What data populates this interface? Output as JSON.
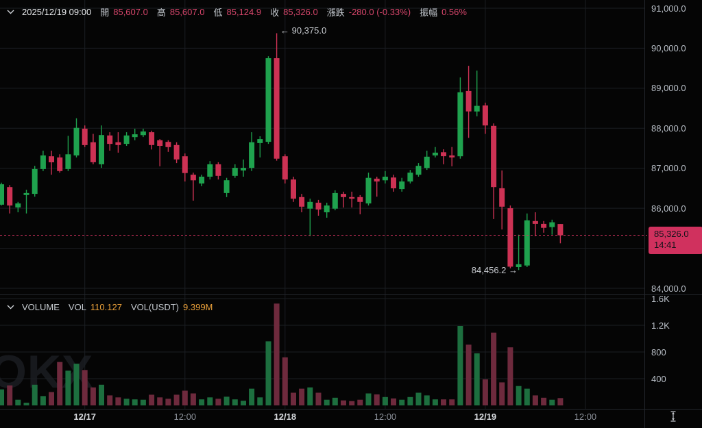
{
  "topbar": {
    "datetime": "2025/12/19 09:00",
    "fields": [
      {
        "label": "開",
        "value": "85,607.0"
      },
      {
        "label": "高",
        "value": "85,607.0"
      },
      {
        "label": "低",
        "value": "85,124.9"
      },
      {
        "label": "收",
        "value": "85,326.0"
      },
      {
        "label": "漲跌",
        "value": "-280.0 (-0.33%)"
      },
      {
        "label": "振幅",
        "value": "0.56%"
      }
    ]
  },
  "volume_header": {
    "title": "VOLUME",
    "fields": [
      {
        "label": "VOL",
        "value": "110.127"
      },
      {
        "label": "VOL(USDT)",
        "value": "9.399M"
      }
    ]
  },
  "annotations": {
    "high_marker": "← 90,375.0",
    "low_marker": "84,456.2 →"
  },
  "price_tag": {
    "price": "85,326.0",
    "time": "14:41"
  },
  "watermark": "OKX",
  "colors": {
    "up": "#1fa24e",
    "down": "#cd3254",
    "tag": "#d0315e",
    "vol_up": "#1d6f3f",
    "vol_down": "#6e2a3d",
    "grid": "#1b1e23",
    "accent_orange": "#eea33b"
  },
  "axes": {
    "price_ticks": [
      {
        "label": "91,000.0",
        "value": 91000
      },
      {
        "label": "90,000.0",
        "value": 90000
      },
      {
        "label": "89,000.0",
        "value": 89000
      },
      {
        "label": "88,000.0",
        "value": 88000
      },
      {
        "label": "87,000.0",
        "value": 87000
      },
      {
        "label": "86,000.0",
        "value": 86000
      },
      {
        "label": "84,000.0",
        "value": 84000
      }
    ],
    "volume_ticks": [
      {
        "label": "1.6K",
        "value": 1600
      },
      {
        "label": "1.2K",
        "value": 1200
      },
      {
        "label": "800",
        "value": 800
      },
      {
        "label": "400",
        "value": 400
      }
    ],
    "x_ticks": [
      {
        "label": "12/17",
        "i": 10,
        "strong": true
      },
      {
        "label": "12:00",
        "i": 22,
        "strong": false
      },
      {
        "label": "12/18",
        "i": 34,
        "strong": true
      },
      {
        "label": "12:00",
        "i": 46,
        "strong": false
      },
      {
        "label": "12/19",
        "i": 58,
        "strong": true
      },
      {
        "label": "12:00",
        "i": 70,
        "strong": false
      }
    ]
  },
  "chart_data": {
    "type": "candlestick",
    "legend_position": "none",
    "grid": true,
    "price_ylim": [
      83930,
      91205
    ],
    "volume_ylim": [
      0,
      1650
    ],
    "price_gridlines": [
      91000,
      90000,
      89000,
      88000,
      87000,
      86000,
      85000,
      84000
    ],
    "marked_high": 90375.0,
    "marked_low": 84456.2,
    "last_price": 85326.0,
    "last_time": "14:41",
    "columns": [
      "open",
      "high",
      "low",
      "close",
      "volume"
    ],
    "candles": [
      [
        86090,
        86640,
        86070,
        86600,
        240
      ],
      [
        86530,
        86580,
        85870,
        86070,
        300
      ],
      [
        86020,
        86160,
        85900,
        86120,
        85
      ],
      [
        86330,
        86465,
        85870,
        86380,
        40
      ],
      [
        86360,
        87060,
        86290,
        86980,
        310
      ],
      [
        86980,
        87440,
        86930,
        87320,
        140
      ],
      [
        87300,
        87440,
        86840,
        87150,
        200
      ],
      [
        87270,
        87350,
        86890,
        86930,
        650
      ],
      [
        86980,
        87810,
        86930,
        87350,
        520
      ],
      [
        87320,
        88250,
        87270,
        88010,
        625
      ],
      [
        87990,
        88070,
        87530,
        87580,
        530
      ],
      [
        87650,
        87860,
        87100,
        87150,
        270
      ],
      [
        87100,
        88070,
        87010,
        87830,
        310
      ],
      [
        87820,
        87900,
        87440,
        87610,
        150
      ],
      [
        87650,
        87900,
        87390,
        87580,
        120
      ],
      [
        87610,
        87900,
        87560,
        87820,
        100
      ],
      [
        87780,
        87990,
        87700,
        87850,
        90
      ],
      [
        87830,
        87990,
        87780,
        87920,
        85
      ],
      [
        87900,
        87940,
        87470,
        87580,
        160
      ],
      [
        87700,
        87730,
        87050,
        87560,
        120
      ],
      [
        87660,
        87700,
        87410,
        87530,
        100
      ],
      [
        87580,
        87650,
        87130,
        87220,
        160
      ],
      [
        87300,
        87370,
        86670,
        86880,
        220
      ],
      [
        86840,
        86890,
        86190,
        86700,
        180
      ],
      [
        86620,
        86840,
        86550,
        86790,
        90
      ],
      [
        86790,
        87180,
        86720,
        87100,
        120
      ],
      [
        87100,
        87150,
        86720,
        86810,
        100
      ],
      [
        86380,
        86760,
        86280,
        86700,
        130
      ],
      [
        86810,
        87100,
        86760,
        87010,
        90
      ],
      [
        86945,
        87220,
        86790,
        87010,
        70
      ],
      [
        87010,
        87900,
        86930,
        87650,
        250
      ],
      [
        87630,
        87800,
        87270,
        87730,
        120
      ],
      [
        87660,
        89800,
        87610,
        89750,
        960
      ],
      [
        89750,
        90375,
        87190,
        87240,
        1525
      ],
      [
        87300,
        87350,
        86620,
        86720,
        720
      ],
      [
        86720,
        86790,
        86160,
        86240,
        190
      ],
      [
        86280,
        86360,
        85900,
        86040,
        250
      ],
      [
        85990,
        86240,
        85300,
        86160,
        270
      ],
      [
        86140,
        86210,
        85815,
        85970,
        190
      ],
      [
        85900,
        86140,
        85765,
        86070,
        85
      ],
      [
        85990,
        86450,
        85950,
        86380,
        115
      ],
      [
        86360,
        86415,
        86020,
        86280,
        75
      ],
      [
        86280,
        86415,
        86020,
        86240,
        65
      ],
      [
        86280,
        86330,
        85850,
        86160,
        85
      ],
      [
        86120,
        86890,
        86070,
        86760,
        180
      ],
      [
        86740,
        86790,
        86290,
        86670,
        165
      ],
      [
        86700,
        86930,
        86620,
        86790,
        125
      ],
      [
        86770,
        86840,
        86415,
        86500,
        105
      ],
      [
        86480,
        86760,
        86415,
        86670,
        85
      ],
      [
        86670,
        86960,
        86620,
        86890,
        125
      ],
      [
        86840,
        87130,
        86790,
        87060,
        190
      ],
      [
        87010,
        87440,
        86960,
        87290,
        150
      ],
      [
        87320,
        87530,
        87270,
        87390,
        90
      ],
      [
        87400,
        87475,
        87100,
        87300,
        90
      ],
      [
        87320,
        87530,
        87050,
        87270,
        90
      ],
      [
        87300,
        89270,
        87240,
        88900,
        1190
      ],
      [
        88930,
        89560,
        87760,
        88420,
        910
      ],
      [
        88420,
        89440,
        88300,
        88560,
        780
      ],
      [
        88570,
        88640,
        87860,
        88070,
        390
      ],
      [
        88060,
        88120,
        85730,
        86530,
        1090
      ],
      [
        86500,
        86945,
        85470,
        86040,
        345
      ],
      [
        86000,
        86070,
        84500,
        84540,
        870
      ],
      [
        84530,
        85340,
        84456.2,
        84600,
        290
      ],
      [
        84570,
        85870,
        84530,
        85700,
        250
      ],
      [
        85680,
        85900,
        85300,
        85610,
        150
      ],
      [
        85610,
        85680,
        85390,
        85510,
        115
      ],
      [
        85530,
        85715,
        85340,
        85650,
        85
      ],
      [
        85607,
        85607,
        85124.9,
        85326,
        110.127
      ]
    ]
  }
}
